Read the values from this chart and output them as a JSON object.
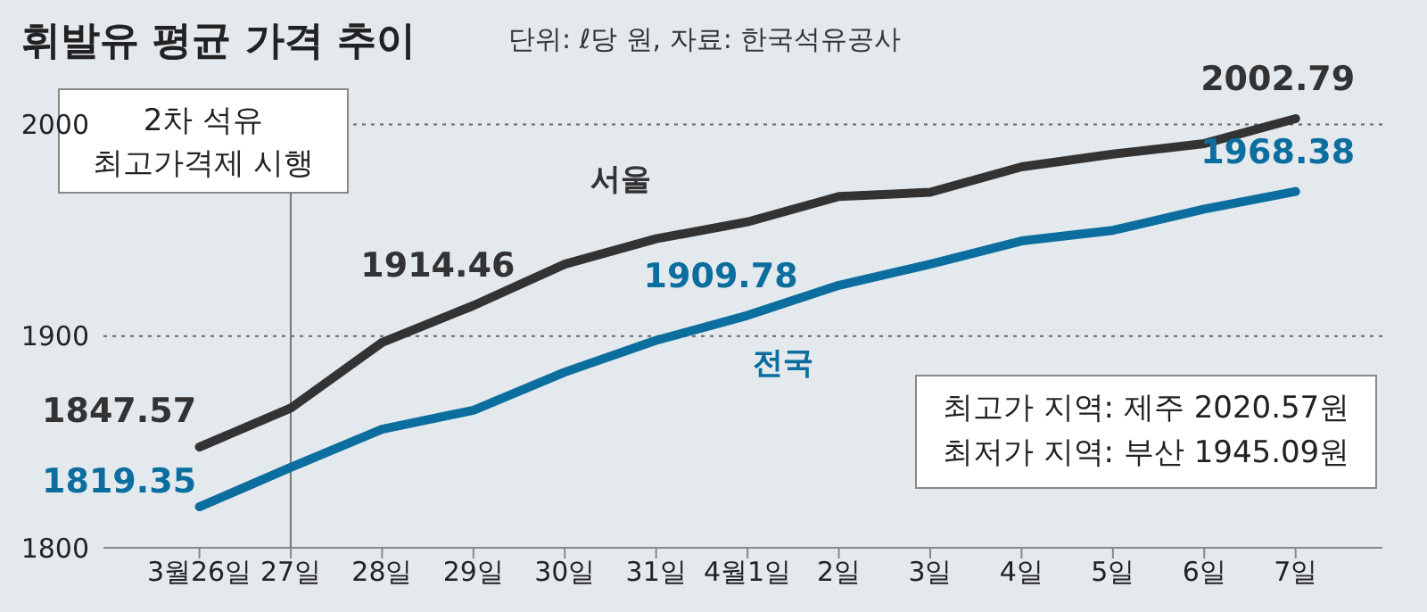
{
  "chart_data": {
    "type": "line",
    "title": "휘발유 평균 가격 추이",
    "subtitle": "단위: ℓ당 원, 자료: 한국석유공사",
    "categories": [
      "3월26일",
      "27일",
      "28일",
      "29일",
      "30일",
      "31일",
      "4월1일",
      "2일",
      "3일",
      "4일",
      "5일",
      "6일",
      "7일"
    ],
    "series": [
      {
        "name": "서울",
        "color": "#333333",
        "values": [
          1847.57,
          1866,
          1897,
          1914.46,
          1934,
          1946,
          1954,
          1966,
          1968,
          1980,
          1986,
          1991,
          2002.79
        ],
        "value_labels": [
          "1847.57",
          null,
          null,
          "1914.46",
          null,
          null,
          null,
          null,
          null,
          null,
          null,
          null,
          "2002.79"
        ]
      },
      {
        "name": "전국",
        "color": "#0b6e9e",
        "values": [
          1819.35,
          1838,
          1856,
          1865,
          1883,
          1898,
          1909.78,
          1924,
          1934,
          1945,
          1950,
          1960,
          1968.38
        ],
        "value_labels": [
          "1819.35",
          null,
          null,
          null,
          null,
          null,
          "1909.78",
          null,
          null,
          null,
          null,
          null,
          "1968.38"
        ]
      }
    ],
    "ylim": [
      1800,
      2015
    ],
    "yticks": [
      1800,
      1900,
      2000
    ],
    "grid": "y",
    "legend": false,
    "marker": "none",
    "line_style": "solid",
    "ref_lines": [
      {
        "axis": "x",
        "value": "27일",
        "label": "2차 석유\n최고가격제 시행",
        "color": "#777777"
      }
    ],
    "annotations": [
      "최고가 지역: 제주 2020.57원",
      "최저가 지역: 부산 1945.09원"
    ]
  }
}
